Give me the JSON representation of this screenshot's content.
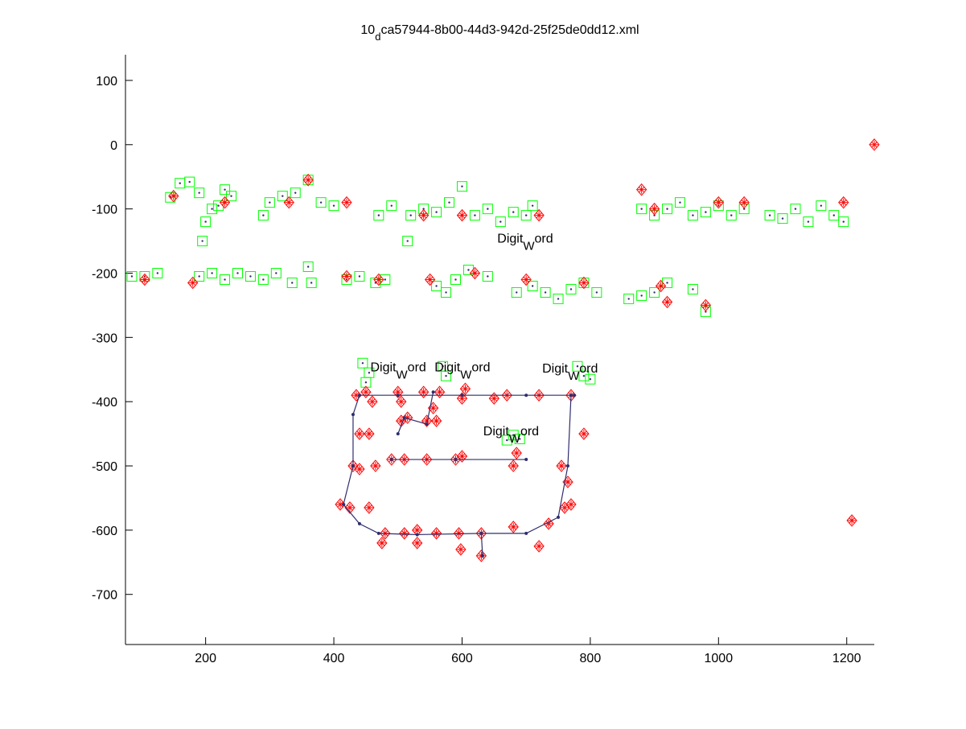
{
  "chart_data": {
    "type": "scatter",
    "title_parts": [
      "10",
      "d",
      "ca57944-8b00-44d3-942d-25f25de0dd12.xml"
    ],
    "xlim": [
      75,
      1243
    ],
    "ylim": [
      -778,
      140
    ],
    "xticks": [
      200,
      400,
      600,
      800,
      1000,
      1200
    ],
    "yticks": [
      100,
      0,
      -100,
      -200,
      -300,
      -400,
      -500,
      -600,
      -700
    ],
    "grid": false,
    "series": [
      {
        "marker": "square",
        "color": "#00ff00",
        "x": [
          145,
          160,
          175,
          190,
          210,
          220,
          240,
          195,
          200,
          230,
          290,
          300,
          320,
          340,
          360,
          380,
          400,
          470,
          490,
          520,
          515,
          540,
          560,
          580,
          600,
          620,
          640,
          660,
          680,
          700,
          710,
          880,
          900,
          920,
          940,
          960,
          980,
          1000,
          1020,
          1040,
          1080,
          1100,
          1120,
          1140,
          1160,
          1180,
          1195,
          85,
          105,
          125,
          190,
          210,
          230,
          250,
          270,
          290,
          310,
          335,
          360,
          365,
          420,
          440,
          465,
          480,
          560,
          575,
          590,
          610,
          640,
          685,
          710,
          730,
          750,
          770,
          790,
          810,
          860,
          880,
          900,
          920,
          980,
          960,
          445,
          455,
          450,
          570,
          575,
          780,
          790,
          800,
          670,
          680,
          690
        ],
        "values": [
          -82,
          -60,
          -58,
          -75,
          -100,
          -95,
          -80,
          -150,
          -120,
          -70,
          -110,
          -90,
          -80,
          -75,
          -55,
          -90,
          -95,
          -110,
          -95,
          -110,
          -150,
          -100,
          -105,
          -90,
          -65,
          -110,
          -100,
          -120,
          -105,
          -110,
          -95,
          -100,
          -110,
          -100,
          -90,
          -110,
          -105,
          -95,
          -110,
          -100,
          -110,
          -115,
          -100,
          -120,
          -95,
          -110,
          -120,
          -205,
          -205,
          -200,
          -205,
          -200,
          -210,
          -200,
          -205,
          -210,
          -200,
          -215,
          -190,
          -215,
          -210,
          -205,
          -215,
          -210,
          -220,
          -230,
          -210,
          -195,
          -205,
          -230,
          -220,
          -230,
          -240,
          -225,
          -215,
          -230,
          -240,
          -235,
          -230,
          -215,
          -260,
          -225,
          -340,
          -355,
          -370,
          -345,
          -360,
          -345,
          -360,
          -365,
          -460,
          -452,
          -458
        ]
      },
      {
        "marker": "star",
        "color": "#ff0000",
        "x": [
          435,
          450,
          460,
          500,
          505,
          540,
          565,
          600,
          605,
          650,
          670,
          720,
          770,
          790,
          440,
          455,
          430,
          440,
          465,
          410,
          425,
          455,
          480,
          475,
          510,
          530,
          530,
          560,
          595,
          598,
          630,
          630,
          680,
          720,
          735,
          760,
          770,
          755,
          765,
          505,
          515,
          545,
          555,
          560,
          490,
          510,
          545,
          590,
          600,
          680,
          685,
          1208,
          1243,
          150,
          230,
          330,
          360,
          420,
          540,
          600,
          720,
          880,
          900,
          1000,
          1040,
          1195,
          105,
          180,
          420,
          470,
          550,
          620,
          700,
          790,
          910,
          920,
          980
        ],
        "values": [
          -390,
          -385,
          -400,
          -385,
          -400,
          -385,
          -385,
          -395,
          -380,
          -395,
          -390,
          -390,
          -390,
          -450,
          -450,
          -450,
          -500,
          -505,
          -500,
          -560,
          -565,
          -565,
          -605,
          -620,
          -605,
          -600,
          -620,
          -605,
          -605,
          -630,
          -605,
          -640,
          -595,
          -625,
          -590,
          -565,
          -560,
          -500,
          -525,
          -430,
          -425,
          -430,
          -410,
          -430,
          -490,
          -490,
          -490,
          -490,
          -485,
          -500,
          -480,
          -585,
          0,
          -80,
          -90,
          -90,
          -55,
          -90,
          -110,
          -110,
          -110,
          -70,
          -100,
          -90,
          -90,
          -90,
          -210,
          -215,
          -205,
          -210,
          -210,
          -200,
          -210,
          -215,
          -220,
          -245,
          -250
        ]
      },
      {
        "marker": "line",
        "color": "#2e2e6e",
        "x": [
          775,
          700,
          600,
          500,
          440,
          430,
          430,
          415,
          440,
          470,
          530,
          630,
          700,
          750,
          765,
          770,
          null,
          490,
          590,
          700,
          null,
          500,
          510,
          545,
          555,
          null,
          630,
          632
        ],
        "values": [
          -390,
          -390,
          -390,
          -390,
          -390,
          -420,
          -500,
          -560,
          -590,
          -605,
          -607,
          -605,
          -605,
          -580,
          -500,
          -390,
          null,
          -490,
          -490,
          -490,
          null,
          -450,
          -425,
          -435,
          -385,
          null,
          -605,
          -640
        ]
      }
    ],
    "annotations": [
      {
        "text_parts": [
          "Digit",
          "W",
          "ord"
        ],
        "x": 655,
        "y": -145
      },
      {
        "text_parts": [
          "Digit",
          "W",
          "ord"
        ],
        "x": 457,
        "y": -345
      },
      {
        "text_parts": [
          "Digit",
          "W",
          "ord"
        ],
        "x": 557,
        "y": -345
      },
      {
        "text_parts": [
          "Digit",
          "W",
          "ord"
        ],
        "x": 725,
        "y": -347
      },
      {
        "text_parts": [
          "Digit",
          "W",
          "ord"
        ],
        "x": 633,
        "y": -445
      }
    ]
  }
}
